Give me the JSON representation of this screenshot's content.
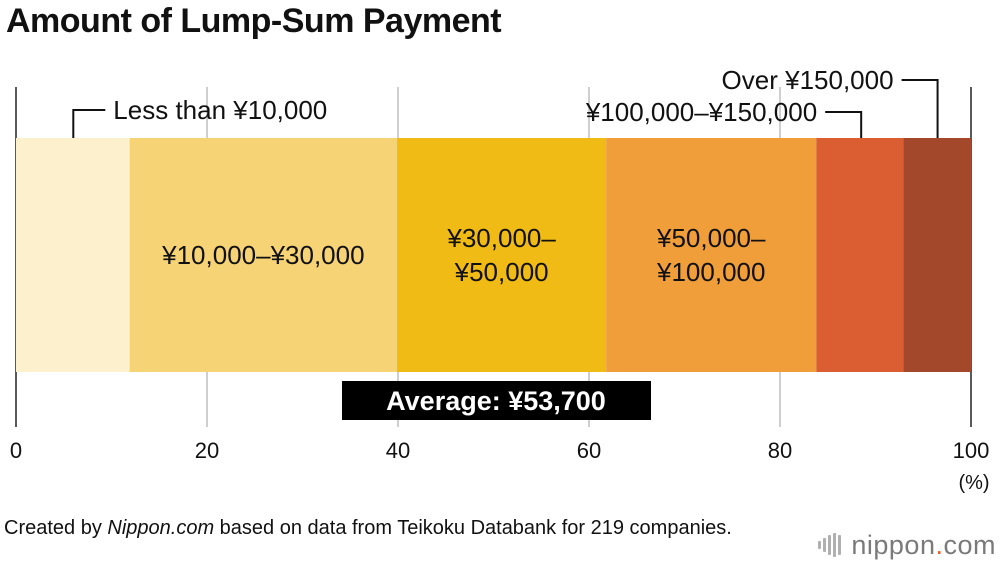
{
  "title": "Amount of Lump-Sum Payment",
  "chart_data": {
    "type": "bar",
    "orientation": "horizontal-stacked",
    "categories": [
      "Less than ¥10,000",
      "¥10,000–¥30,000",
      "¥30,000–¥50,000",
      "¥50,000–¥100,000",
      "¥100,000–¥150,000",
      "Over ¥150,000"
    ],
    "label_lines": [
      [
        "Less than ¥10,000"
      ],
      [
        "¥10,000–¥30,000"
      ],
      [
        "¥30,000–",
        "¥50,000"
      ],
      [
        "¥50,000–",
        "¥100,000"
      ],
      [
        "¥100,000–¥150,000"
      ],
      [
        "Over ¥150,000"
      ]
    ],
    "values": [
      11.9,
      28.0,
      21.9,
      22.0,
      9.1,
      7.1
    ],
    "colors": [
      "#fcf0cd",
      "#f6d374",
      "#f0bb15",
      "#ef9e3a",
      "#da5e31",
      "#a3482a"
    ],
    "xlim": [
      0,
      100
    ],
    "xticks": [
      0,
      20,
      40,
      60,
      80,
      100
    ],
    "unit": "(%)",
    "grid": true,
    "annotation": "Average: ¥53,700"
  },
  "source": {
    "prefix": "Created by ",
    "emphasis": "Nippon.com",
    "suffix": " based on data from Teikoku Databank for 219 companies."
  },
  "logo": {
    "name": "nippon",
    "dot": ".",
    "tld": "com"
  }
}
